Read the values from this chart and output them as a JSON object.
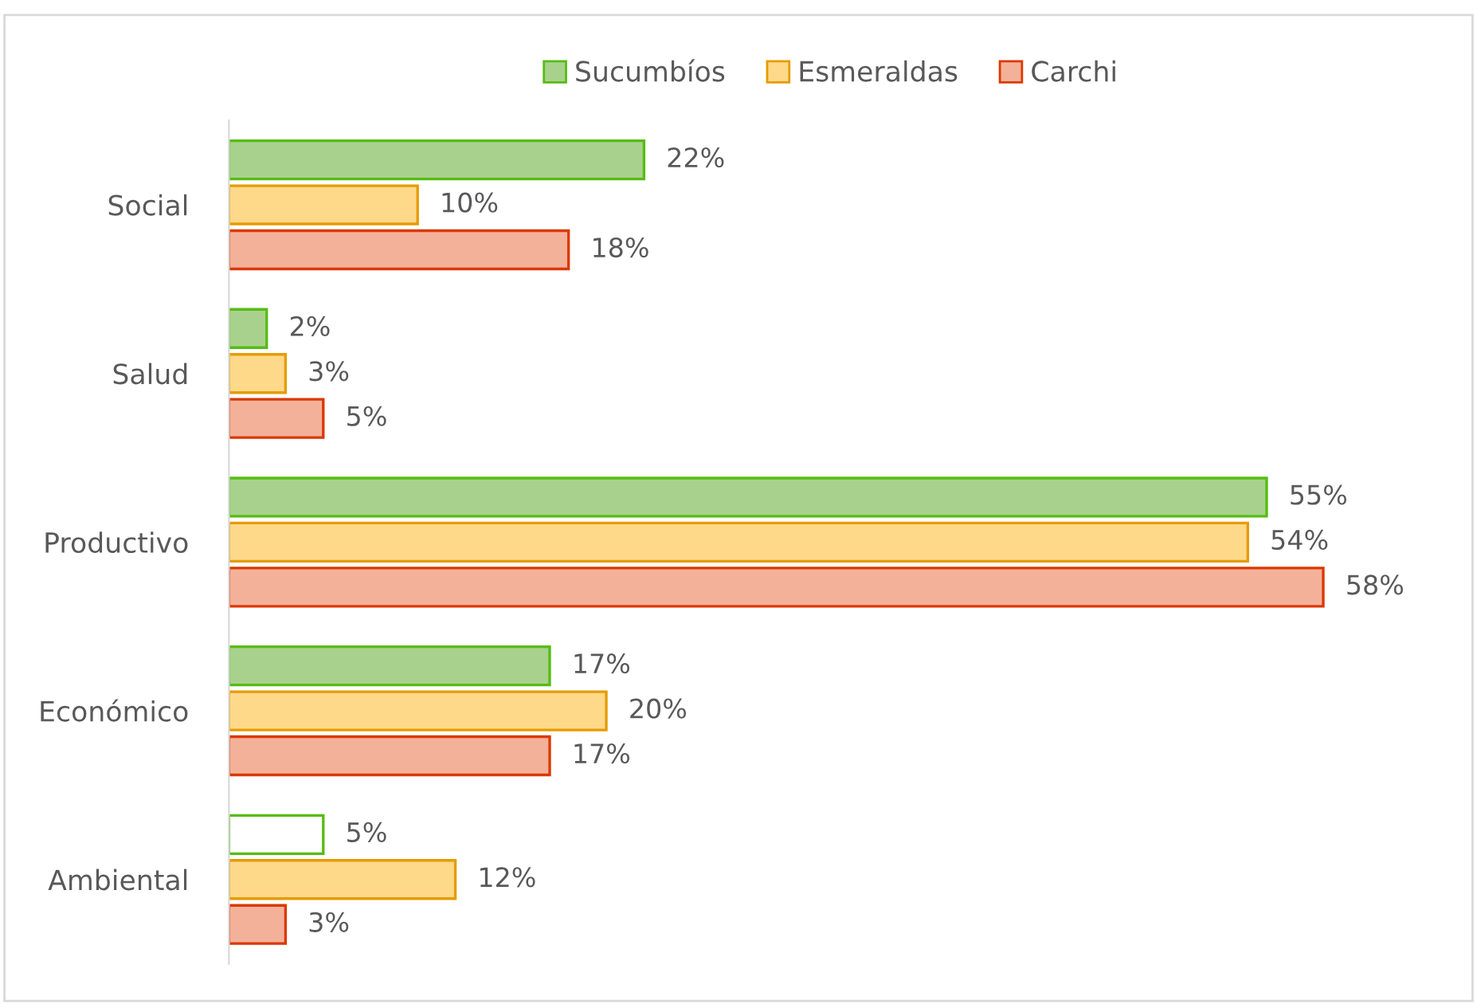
{
  "chart_data": {
    "type": "bar",
    "orientation": "horizontal",
    "categories": [
      "Social",
      "Salud",
      "Productivo",
      "Económico",
      "Ambiental"
    ],
    "series": [
      {
        "name": "Sucumbíos",
        "color": "#a9d18e",
        "colors": [
          "#a9d18e",
          "#a9d18e",
          "#a9d18e",
          "#a9d18e",
          "#ffffff"
        ],
        "values": [
          22,
          2,
          55,
          17,
          5
        ],
        "value_labels": [
          "22%",
          "2%",
          "55%",
          "17%",
          "5%"
        ]
      },
      {
        "name": "Esmeraldas",
        "color": "#ffd98a",
        "values": [
          10,
          3,
          54,
          20,
          12
        ],
        "value_labels": [
          "10%",
          "3%",
          "54%",
          "20%",
          "12%"
        ]
      },
      {
        "name": "Carchi",
        "color": "#f4b19a",
        "values": [
          18,
          5,
          58,
          17,
          3
        ],
        "value_labels": [
          "18%",
          "5%",
          "58%",
          "17%",
          "3%"
        ]
      }
    ],
    "legend": "top",
    "grid": false
  }
}
